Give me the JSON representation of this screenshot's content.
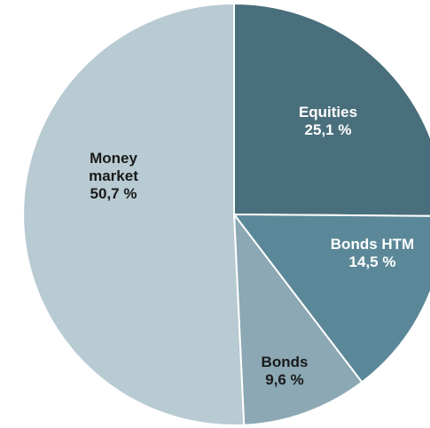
{
  "chart_data": {
    "type": "pie",
    "title": "",
    "start_angle_deg": 0,
    "direction": "clockwise",
    "slices": [
      {
        "label": [
          "Equities"
        ],
        "value": 25.1,
        "value_text": "25,1 %",
        "color": "#4a6f7c",
        "label_color": "#ffffff"
      },
      {
        "label": [
          "Bonds HTM"
        ],
        "value": 14.5,
        "value_text": "14,5 %",
        "color": "#5b8898",
        "label_color": "#ffffff"
      },
      {
        "label": [
          "Bonds"
        ],
        "value": 9.6,
        "value_text": "9,6 %",
        "color": "#8ba8b4",
        "label_color": "#1a1a1a"
      },
      {
        "label": [
          "Money",
          "market"
        ],
        "value": 50.7,
        "value_text": "50,7 %",
        "color": "#b8cad2",
        "label_color": "#1a1a1a"
      }
    ],
    "border_color": "#ffffff"
  }
}
